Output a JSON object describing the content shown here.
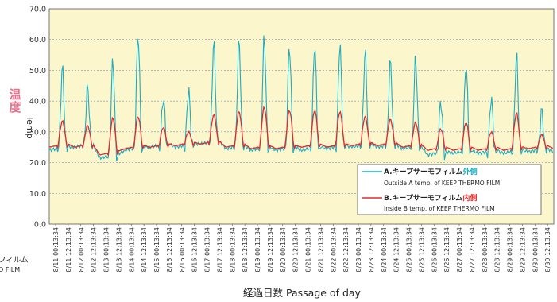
{
  "chart_data": {
    "type": "line",
    "ylim": [
      0,
      70
    ],
    "yticks": [
      "0.0",
      "10.0",
      "20.0",
      "30.0",
      "40.0",
      "50.0",
      "60.0",
      "70.0"
    ],
    "ylabel_jp": "温度",
    "ylabel_en": "Temp",
    "xlabel": "経過日数 Passage of day",
    "xticks": [
      "8/11 00:13:34",
      "8/11 12:13:34",
      "8/12 00:13:34",
      "8/12 12:13:34",
      "8/13 00:13:34",
      "8/13 12:13:34",
      "8/14 00:13:34",
      "8/14 12:13:34",
      "8/15 00:13:34",
      "8/15 12:13:34",
      "8/16 00:13:34",
      "8/16 12:13:34",
      "8/17 00:13:34",
      "8/17 12:13:34",
      "8/18 00:13:34",
      "8/18 12:13:34",
      "8/19 00:13:34",
      "8/19 12:13:34",
      "8/20 00:13:34",
      "8/20 12:13:34",
      "8/21 00:13:34",
      "8/21 12:13:34",
      "8/22 00:13:34",
      "8/22 12:13:34",
      "8/23 00:13:34",
      "8/23 12:13:34",
      "8/24 00:13:34",
      "8/24 12:13:34",
      "8/25 00:13:34",
      "8/25 12:13:34",
      "8/26 00:13:34",
      "8/26 12:13:34",
      "8/27 00:13:34",
      "8/27 12:13:34",
      "8/28 00:13:34",
      "8/28 12:13:34",
      "8/29 00:13:34",
      "8/29 12:13:34",
      "8/30 00:13:34",
      "8/30 12:13:34"
    ],
    "x_start_day": 11,
    "x_end_day": 31,
    "daily": [
      {
        "day": "8/11",
        "a_min": 24,
        "a_max": 51,
        "b_min": 25,
        "b_max": 33.5
      },
      {
        "day": "8/12",
        "a_min": 25,
        "a_max": 44.5,
        "b_min": 25,
        "b_max": 32
      },
      {
        "day": "8/13",
        "a_min": 21.5,
        "a_max": 53.5,
        "b_min": 22.5,
        "b_max": 34.5
      },
      {
        "day": "8/14",
        "a_min": 24,
        "a_max": 62,
        "b_min": 24.5,
        "b_max": 35
      },
      {
        "day": "8/15",
        "a_min": 25,
        "a_max": 41,
        "b_min": 25,
        "b_max": 31.5
      },
      {
        "day": "8/16",
        "a_min": 25,
        "a_max": 43.5,
        "b_min": 25.5,
        "b_max": 30
      },
      {
        "day": "8/17",
        "a_min": 26,
        "a_max": 59,
        "b_min": 26,
        "b_max": 35.5
      },
      {
        "day": "8/18",
        "a_min": 24.5,
        "a_max": 59.5,
        "b_min": 25,
        "b_max": 36.5
      },
      {
        "day": "8/19",
        "a_min": 24,
        "a_max": 61,
        "b_min": 24.5,
        "b_max": 38
      },
      {
        "day": "8/20",
        "a_min": 24,
        "a_max": 58,
        "b_min": 24.5,
        "b_max": 37
      },
      {
        "day": "8/21",
        "a_min": 24,
        "a_max": 58.5,
        "b_min": 25,
        "b_max": 37
      },
      {
        "day": "8/22",
        "a_min": 24.5,
        "a_max": 58.5,
        "b_min": 25,
        "b_max": 36.5
      },
      {
        "day": "8/23",
        "a_min": 25,
        "a_max": 56,
        "b_min": 25.5,
        "b_max": 35
      },
      {
        "day": "8/24",
        "a_min": 25,
        "a_max": 53,
        "b_min": 25.5,
        "b_max": 34
      },
      {
        "day": "8/25",
        "a_min": 24.5,
        "a_max": 54,
        "b_min": 25,
        "b_max": 33
      },
      {
        "day": "8/26",
        "a_min": 22.5,
        "a_max": 40,
        "b_min": 24,
        "b_max": 31
      },
      {
        "day": "8/27",
        "a_min": 23,
        "a_max": 52,
        "b_min": 24,
        "b_max": 33
      },
      {
        "day": "8/28",
        "a_min": 23,
        "a_max": 41,
        "b_min": 24,
        "b_max": 30
      },
      {
        "day": "8/29",
        "a_min": 23,
        "a_max": 55,
        "b_min": 24,
        "b_max": 36
      },
      {
        "day": "8/30",
        "a_min": 23.5,
        "a_max": 37,
        "b_min": 24.5,
        "b_max": 29
      }
    ],
    "series": [
      {
        "key": "A",
        "color": "#1aaec4",
        "label_prefix": "A.",
        "label_main": "キープサーモフィルム",
        "label_emph": "外側",
        "label_sub": "Outside A temp. of KEEP THERMO FILM"
      },
      {
        "key": "B",
        "color": "#e8262a",
        "label_prefix": "B.",
        "label_main": "キープサーモフィルム",
        "label_emph": "内側",
        "label_sub": "Inside B temp. of KEEP THERMO FILM"
      }
    ],
    "legend_position": "bottom-right",
    "grid": true
  },
  "cut_legend": {
    "line1": "フィルム",
    "line2": "O FILM"
  },
  "colors": {
    "plot_bg": "#fbf6cc",
    "grid": "#7f8fb0",
    "ylabel_jp": "#e86f8a",
    "legend_emph_a": "#1aaec4",
    "legend_emph_b": "#e8262a"
  }
}
